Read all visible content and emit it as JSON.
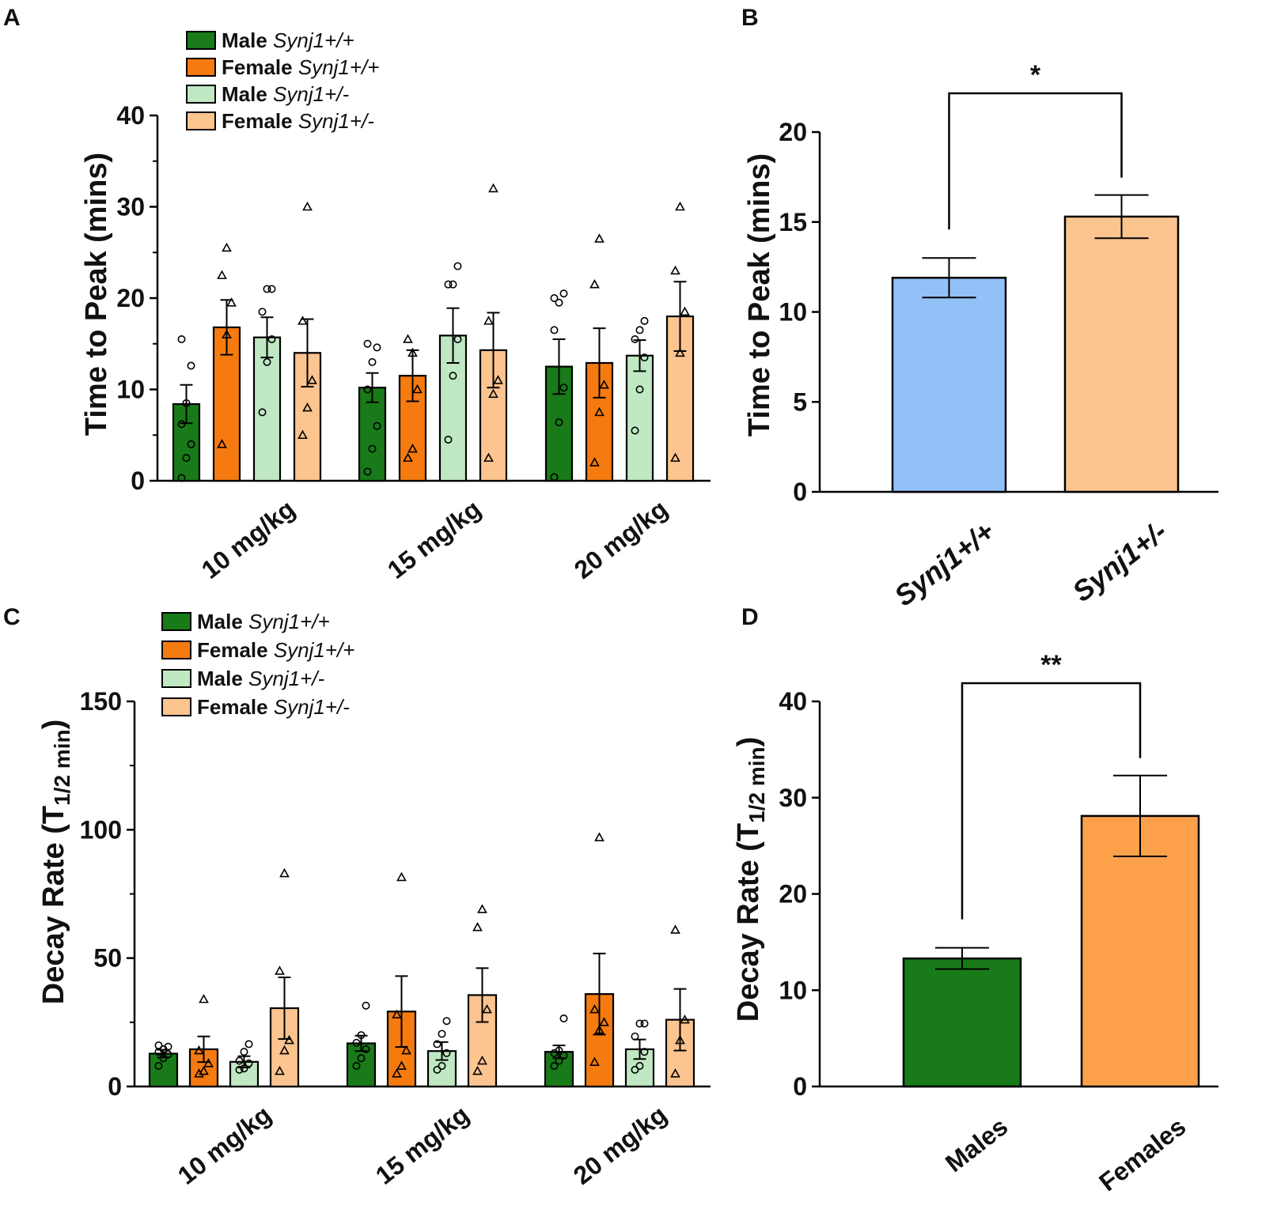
{
  "colors": {
    "male_wt": "#187a18",
    "female_wt": "#f57a0f",
    "male_het": "#bfe8c3",
    "female_het": "#fcc48f",
    "b_wt": "#93c0f7",
    "b_het": "#fcc48f",
    "d_males": "#187a18",
    "d_females": "#fca04a"
  },
  "legend": {
    "items": [
      {
        "sex": "Male",
        "genotype": "Synj1+/+",
        "color_key": "male_wt"
      },
      {
        "sex": "Female",
        "genotype": "Synj1+/+",
        "color_key": "female_wt"
      },
      {
        "sex": "Male",
        "genotype": "Synj1+/-",
        "color_key": "male_het"
      },
      {
        "sex": "Female",
        "genotype": "Synj1+/-",
        "color_key": "female_het"
      }
    ]
  },
  "chart_data": [
    {
      "panel": "A",
      "type": "bar",
      "ylabel": "Time to Peak (mins)",
      "ylim": [
        0,
        40
      ],
      "yticks": [
        0,
        10,
        20,
        30,
        40
      ],
      "categories": [
        "10 mg/kg",
        "15 mg/kg",
        "20 mg/kg"
      ],
      "series": [
        {
          "name": "Male Synj1+/+",
          "values": [
            8.4,
            10.2,
            12.5
          ],
          "sem": [
            2.1,
            1.6,
            3.0
          ],
          "points": [
            [
              0.3,
              2.5,
              4.0,
              6.2,
              8.5,
              12.6,
              15.5
            ],
            [
              1.0,
              3.5,
              6.0,
              10.0,
              13.0,
              14.6,
              15.0
            ],
            [
              0.4,
              6.4,
              10.2,
              16.5,
              19.5,
              20.5,
              20.0
            ]
          ],
          "marker": "circle"
        },
        {
          "name": "Female Synj1+/+",
          "values": [
            16.8,
            11.5,
            12.9
          ],
          "sem": [
            3.0,
            2.8,
            3.8
          ],
          "points": [
            [
              4.0,
              16.0,
              19.5,
              22.5,
              25.5
            ],
            [
              2.5,
              3.5,
              10.0,
              15.5,
              14.0
            ],
            [
              2.0,
              7.5,
              10.5,
              21.5,
              26.5
            ]
          ],
          "marker": "triangle"
        },
        {
          "name": "Male Synj1+/-",
          "values": [
            15.7,
            15.9,
            13.7
          ],
          "sem": [
            2.2,
            3.0,
            1.7
          ],
          "points": [
            [
              7.5,
              13.0,
              15.5,
              18.5,
              21.0,
              21.0
            ],
            [
              4.5,
              11.5,
              15.5,
              21.5,
              21.5,
              23.5
            ],
            [
              5.5,
              10.0,
              13.5,
              15.5,
              16.5,
              17.5
            ]
          ],
          "marker": "circle"
        },
        {
          "name": "Female Synj1+/-",
          "values": [
            14.0,
            14.3,
            18.0
          ],
          "sem": [
            3.7,
            4.1,
            3.8
          ],
          "points": [
            [
              5.0,
              8.0,
              11.0,
              17.5,
              30.0
            ],
            [
              2.5,
              9.5,
              11.0,
              17.5,
              32.0
            ],
            [
              2.5,
              14.0,
              18.5,
              23.0,
              30.0
            ]
          ],
          "marker": "triangle"
        }
      ]
    },
    {
      "panel": "B",
      "type": "bar",
      "ylabel": "Time to Peak (mins)",
      "ylim": [
        0,
        20
      ],
      "yticks": [
        0,
        5,
        10,
        15,
        20
      ],
      "categories": [
        "Synj1+/+",
        "Synj1+/-"
      ],
      "values": [
        11.9,
        15.3
      ],
      "sem": [
        1.1,
        1.2
      ],
      "significance": "*"
    },
    {
      "panel": "C",
      "type": "bar",
      "ylabel_main": "Decay  Rate (T",
      "ylabel_sub": "1/2 min",
      "ylabel_close": ")",
      "ylim": [
        0,
        150
      ],
      "yticks": [
        0,
        50,
        100,
        150
      ],
      "categories": [
        "10 mg/kg",
        "15 mg/kg",
        "20 mg/kg"
      ],
      "series": [
        {
          "name": "Male Synj1+/+",
          "values": [
            12.8,
            16.8,
            13.5
          ],
          "sem": [
            1.5,
            3.0,
            2.5
          ],
          "points": [
            [
              8.0,
              11.0,
              12.5,
              13.5,
              14.5,
              15.5,
              16.0
            ],
            [
              8.0,
              11.0,
              14.5,
              17.0,
              20.0,
              31.5
            ],
            [
              8.0,
              10.0,
              12.0,
              13.0,
              14.0,
              26.5
            ]
          ],
          "marker": "circle"
        },
        {
          "name": "Female Synj1+/+",
          "values": [
            14.5,
            29.2,
            36.0
          ],
          "sem": [
            5.0,
            13.8,
            15.8
          ],
          "points": [
            [
              5.0,
              6.0,
              9.0,
              14.0,
              34.0
            ],
            [
              5.0,
              8.0,
              14.0,
              28.0,
              81.5
            ],
            [
              9.5,
              22.0,
              25.0,
              30.0,
              97.0
            ]
          ],
          "marker": "triangle"
        },
        {
          "name": "Male Synj1+/-",
          "values": [
            9.6,
            13.8,
            14.5
          ],
          "sem": [
            2.2,
            3.5,
            3.8
          ],
          "points": [
            [
              6.5,
              7.0,
              9.0,
              10.0,
              13.5,
              16.5
            ],
            [
              6.5,
              8.0,
              13.0,
              16.5,
              20.5,
              25.5
            ],
            [
              6.5,
              8.0,
              13.5,
              19.5,
              24.5,
              24.5
            ]
          ],
          "marker": "circle"
        },
        {
          "name": "Female Synj1+/-",
          "values": [
            30.5,
            35.6,
            26.0
          ],
          "sem": [
            12.0,
            10.5,
            12.0
          ],
          "points": [
            [
              6.0,
              14.0,
              18.0,
              45.0,
              83.0
            ],
            [
              6.0,
              10.0,
              30.0,
              62.0,
              69.0
            ],
            [
              5.0,
              18.0,
              26.0,
              61.0
            ]
          ],
          "marker": "triangle"
        }
      ]
    },
    {
      "panel": "D",
      "type": "bar",
      "ylabel_main": "Decay  Rate (T",
      "ylabel_sub": "1/2 min",
      "ylabel_close": ")",
      "ylim": [
        0,
        40
      ],
      "yticks": [
        0,
        10,
        20,
        30,
        40
      ],
      "categories": [
        "Males",
        "Females"
      ],
      "values": [
        13.3,
        28.1
      ],
      "sem": [
        1.1,
        4.2
      ],
      "significance": "**"
    }
  ]
}
